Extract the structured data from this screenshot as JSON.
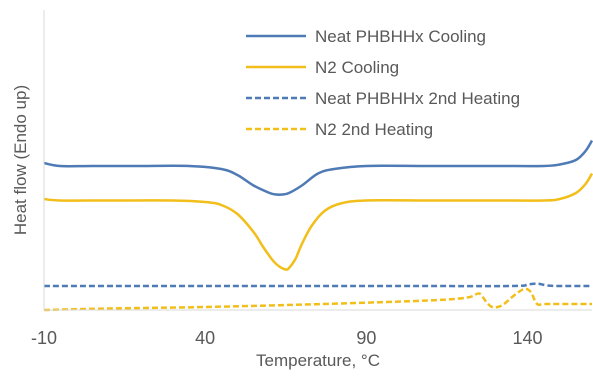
{
  "chart_data": {
    "type": "line",
    "title": "",
    "xlabel": "Temperature, °C",
    "ylabel": "Heat flow (Endo up)",
    "xlim": [
      -10,
      160
    ],
    "ylim": [
      0,
      1
    ],
    "x_ticks": [
      -10,
      40,
      90,
      140
    ],
    "x_tick_labels": [
      "-10",
      "40",
      "90",
      "140"
    ],
    "y_ticks": "none",
    "grid": false,
    "legend_position": "top-right",
    "series": [
      {
        "name": "Neat PHBHHx Cooling",
        "color": "#4E7AB5",
        "style": "solid",
        "points": [
          [
            -10,
            0.49
          ],
          [
            -5,
            0.48
          ],
          [
            5,
            0.48
          ],
          [
            20,
            0.48
          ],
          [
            35,
            0.48
          ],
          [
            45,
            0.47
          ],
          [
            50,
            0.45
          ],
          [
            55,
            0.415
          ],
          [
            60,
            0.39
          ],
          [
            62,
            0.385
          ],
          [
            64,
            0.385
          ],
          [
            66,
            0.39
          ],
          [
            70,
            0.415
          ],
          [
            75,
            0.455
          ],
          [
            80,
            0.47
          ],
          [
            90,
            0.48
          ],
          [
            110,
            0.48
          ],
          [
            130,
            0.48
          ],
          [
            145,
            0.48
          ],
          [
            150,
            0.485
          ],
          [
            155,
            0.5
          ],
          [
            158,
            0.53
          ],
          [
            160,
            0.565
          ]
        ]
      },
      {
        "name": "N2 Cooling",
        "color": "#F2BE1A",
        "style": "solid",
        "points": [
          [
            -10,
            0.37
          ],
          [
            -5,
            0.365
          ],
          [
            10,
            0.365
          ],
          [
            30,
            0.365
          ],
          [
            40,
            0.36
          ],
          [
            45,
            0.35
          ],
          [
            50,
            0.32
          ],
          [
            55,
            0.26
          ],
          [
            58,
            0.21
          ],
          [
            61,
            0.165
          ],
          [
            63,
            0.145
          ],
          [
            65,
            0.135
          ],
          [
            66,
            0.14
          ],
          [
            68,
            0.17
          ],
          [
            70,
            0.22
          ],
          [
            73,
            0.28
          ],
          [
            77,
            0.33
          ],
          [
            82,
            0.355
          ],
          [
            90,
            0.365
          ],
          [
            110,
            0.365
          ],
          [
            130,
            0.365
          ],
          [
            145,
            0.365
          ],
          [
            150,
            0.37
          ],
          [
            155,
            0.39
          ],
          [
            158,
            0.42
          ],
          [
            160,
            0.455
          ]
        ]
      },
      {
        "name": "Neat PHBHHx 2nd Heating",
        "color": "#4E7AB5",
        "style": "dashed",
        "points": [
          [
            -10,
            0.08
          ],
          [
            40,
            0.08
          ],
          [
            100,
            0.08
          ],
          [
            135,
            0.08
          ],
          [
            140,
            0.085
          ],
          [
            143,
            0.088
          ],
          [
            146,
            0.082
          ],
          [
            150,
            0.08
          ],
          [
            160,
            0.08
          ]
        ]
      },
      {
        "name": "N2 2nd Heating",
        "color": "#F2BE1A",
        "style": "dashed",
        "points": [
          [
            -10,
            0.0
          ],
          [
            10,
            0.005
          ],
          [
            40,
            0.01
          ],
          [
            70,
            0.018
          ],
          [
            100,
            0.028
          ],
          [
            115,
            0.035
          ],
          [
            122,
            0.043
          ],
          [
            125,
            0.055
          ],
          [
            127,
            0.03
          ],
          [
            129,
            0.01
          ],
          [
            132,
            0.015
          ],
          [
            136,
            0.05
          ],
          [
            139,
            0.07
          ],
          [
            141,
            0.06
          ],
          [
            143,
            0.02
          ],
          [
            146,
            0.02
          ],
          [
            160,
            0.02
          ]
        ]
      }
    ]
  }
}
